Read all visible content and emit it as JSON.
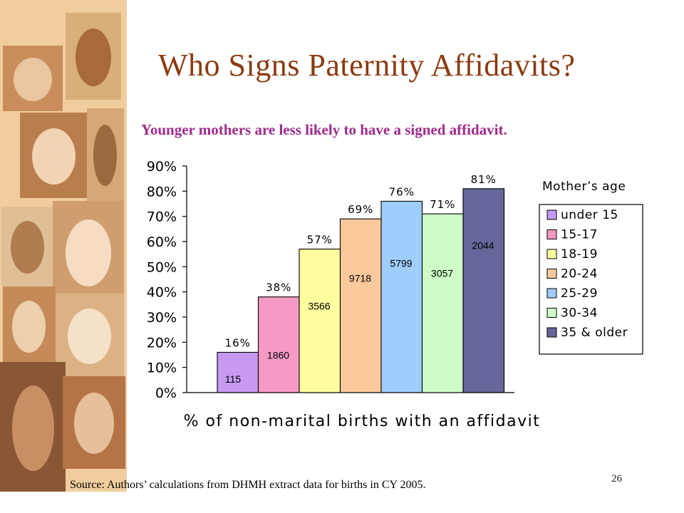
{
  "slide": {
    "title": "Who Signs Paternity Affidavits?",
    "subtitle": "Younger mothers are less likely to have a signed affidavit.",
    "source": "Source: Authors’ calculations from DHMH extract data for births in CY 2005.",
    "page_number": "26",
    "title_color": "#8c3a10",
    "subtitle_color": "#a02a8c"
  },
  "chart_data": {
    "type": "bar",
    "xlabel": "% of non-marital births with an affidavit",
    "ylim": [
      0,
      90
    ],
    "yticks": [
      "0%",
      "10%",
      "20%",
      "30%",
      "40%",
      "50%",
      "60%",
      "70%",
      "80%",
      "90%"
    ],
    "legend_title": "Mother’s age",
    "legend_position": "right",
    "series": [
      {
        "name": "under 15",
        "value": 16,
        "label": "16%",
        "count": "115",
        "color": "#c59af0"
      },
      {
        "name": "15-17",
        "value": 38,
        "label": "38%",
        "count": "1860",
        "color": "#f59ac4"
      },
      {
        "name": "18-19",
        "value": 57,
        "label": "57%",
        "count": "3566",
        "color": "#fdfda0"
      },
      {
        "name": "20-24",
        "value": 69,
        "label": "69%",
        "count": "9718",
        "color": "#fbc99c"
      },
      {
        "name": "25-29",
        "value": 76,
        "label": "76%",
        "count": "5799",
        "color": "#9fcdfc"
      },
      {
        "name": "30-34",
        "value": 71,
        "label": "71%",
        "count": "3057",
        "color": "#cdfcc7"
      },
      {
        "name": "35 & older",
        "value": 81,
        "label": "81%",
        "count": "2044",
        "color": "#65679a"
      }
    ]
  }
}
